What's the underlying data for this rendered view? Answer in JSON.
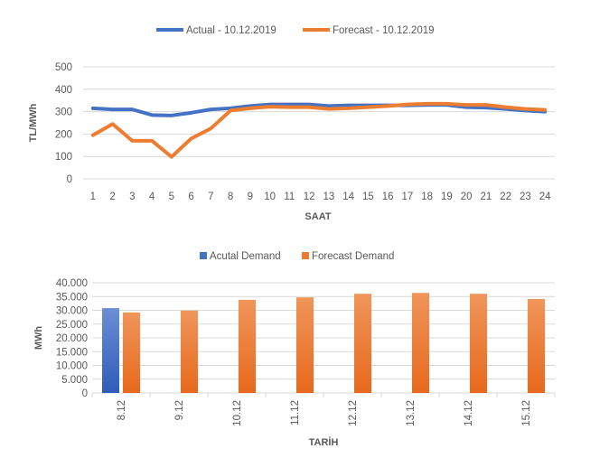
{
  "chart_data": [
    {
      "type": "line",
      "title": "",
      "xlabel": "SAAT",
      "ylabel": "TL/MWh",
      "ylim": [
        0,
        500
      ],
      "yticks": [
        "0",
        "100",
        "200",
        "300",
        "400",
        "500"
      ],
      "grid": true,
      "legend_position": "top",
      "categories": [
        "1",
        "2",
        "3",
        "4",
        "5",
        "6",
        "7",
        "8",
        "9",
        "10",
        "11",
        "12",
        "13",
        "14",
        "15",
        "16",
        "17",
        "18",
        "19",
        "20",
        "21",
        "22",
        "23",
        "24"
      ],
      "series": [
        {
          "name": "Actual - 10.12.2019",
          "color": "#4472c4",
          "values": [
            315,
            310,
            310,
            285,
            283,
            295,
            310,
            315,
            325,
            332,
            332,
            332,
            325,
            328,
            328,
            328,
            328,
            330,
            330,
            320,
            318,
            312,
            305,
            300
          ]
        },
        {
          "name": "Forecast - 10.12.2019",
          "color": "#ed7d31",
          "values": [
            195,
            245,
            170,
            170,
            98,
            180,
            225,
            305,
            315,
            322,
            320,
            320,
            312,
            315,
            320,
            325,
            332,
            335,
            335,
            330,
            330,
            320,
            312,
            308
          ]
        }
      ]
    },
    {
      "type": "bar",
      "title": "",
      "xlabel": "TARİH",
      "ylabel": "MWh",
      "ylim": [
        0,
        40000
      ],
      "yticks": [
        "0",
        "5.000",
        "10.000",
        "15.000",
        "20.000",
        "25.000",
        "30.000",
        "35.000",
        "40.000"
      ],
      "grid": true,
      "legend_position": "top",
      "categories": [
        "8.12",
        "9.12",
        "10.12",
        "11.12",
        "12.12",
        "13.12",
        "14.12",
        "15.12"
      ],
      "series": [
        {
          "name": "Acutal Demand",
          "color": "#4472c4",
          "values": [
            30800,
            null,
            null,
            null,
            null,
            null,
            null,
            null
          ]
        },
        {
          "name": "Forecast Demand",
          "color": "#ed7d31",
          "values": [
            29200,
            29900,
            33800,
            34700,
            36000,
            36300,
            36000,
            34100
          ]
        }
      ]
    }
  ]
}
